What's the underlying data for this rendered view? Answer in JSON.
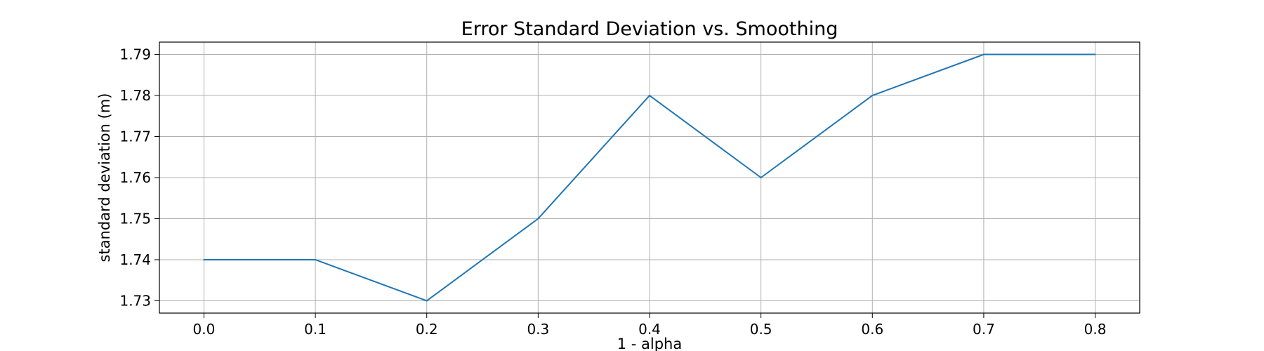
{
  "chart_data": {
    "type": "line",
    "title": "Error Standard Deviation vs. Smoothing",
    "xlabel": "1 - alpha",
    "ylabel": "standard deviation (m)",
    "x": [
      0.0,
      0.1,
      0.2,
      0.3,
      0.4,
      0.5,
      0.6,
      0.7,
      0.8
    ],
    "series": [
      {
        "values": [
          1.74,
          1.74,
          1.73,
          1.75,
          1.78,
          1.76,
          1.78,
          1.79,
          1.79
        ]
      }
    ],
    "xlim": [
      -0.04,
      0.84
    ],
    "ylim": [
      1.727,
      1.793
    ],
    "xticks": [
      0.0,
      0.1,
      0.2,
      0.3,
      0.4,
      0.5,
      0.6,
      0.7,
      0.8
    ],
    "xtick_labels": [
      "0.0",
      "0.1",
      "0.2",
      "0.3",
      "0.4",
      "0.5",
      "0.6",
      "0.7",
      "0.8"
    ],
    "yticks": [
      1.73,
      1.74,
      1.75,
      1.76,
      1.77,
      1.78,
      1.79
    ],
    "ytick_labels": [
      "1.73",
      "1.74",
      "1.75",
      "1.76",
      "1.77",
      "1.78",
      "1.79"
    ],
    "grid": true,
    "line_color": "#1f77b4"
  }
}
